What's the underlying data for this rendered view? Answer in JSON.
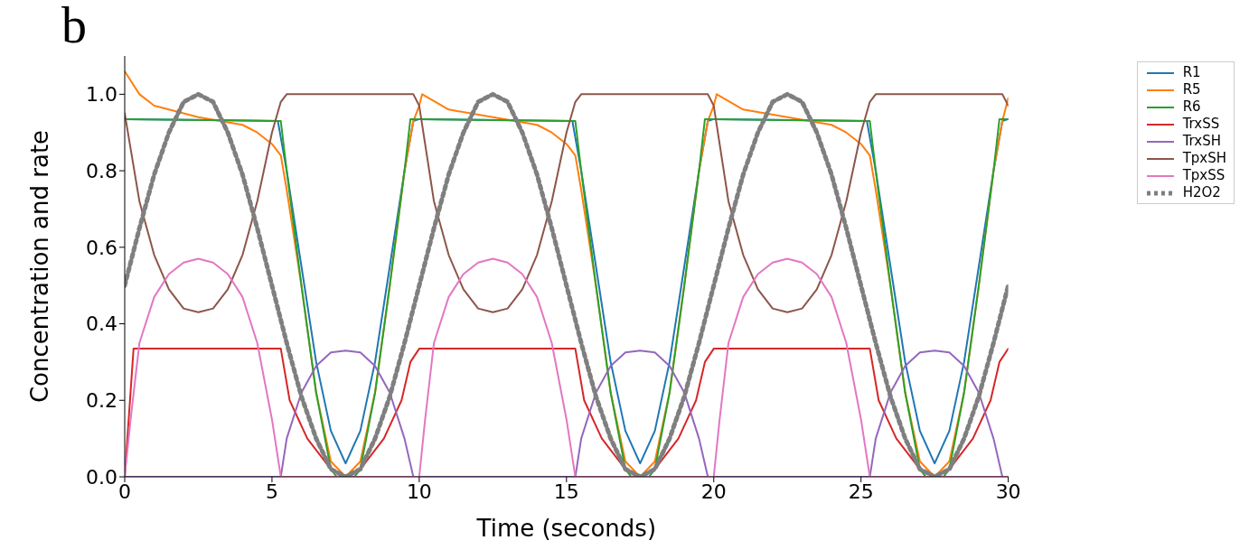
{
  "chart_data": {
    "type": "line",
    "xlabel": "Time (seconds)",
    "ylabel": "Concentration and rate",
    "annotations": [
      "b"
    ],
    "xlim": [
      0,
      30
    ],
    "xticks": [
      0,
      5,
      10,
      15,
      20,
      25,
      30
    ],
    "ylim": [
      0,
      1.1
    ],
    "yticks": [
      {
        "value": 0,
        "label": "0.0"
      },
      0.2,
      0.4,
      0.6,
      0.8,
      {
        "value": 1,
        "label": "1.0"
      }
    ],
    "legend": "top right",
    "series": [
      {
        "name": "R1",
        "color": "#1f77b4",
        "x": [
          0,
          5.2,
          5.5,
          6,
          6.5,
          7,
          7.5,
          8,
          8.5,
          9,
          9.5,
          9.8,
          10,
          15.2,
          15.5,
          16,
          16.5,
          17,
          17.5,
          18,
          18.5,
          19,
          19.5,
          19.8,
          20,
          25.2,
          25.5,
          26,
          26.5,
          27,
          27.5,
          28,
          28.5,
          29,
          29.5,
          29.8,
          30
        ],
        "values": [
          0.935,
          0.93,
          0.8,
          0.55,
          0.3,
          0.12,
          0.035,
          0.12,
          0.3,
          0.55,
          0.8,
          0.93,
          0.935,
          0.93,
          0.8,
          0.55,
          0.3,
          0.12,
          0.035,
          0.12,
          0.3,
          0.55,
          0.8,
          0.93,
          0.935,
          0.93,
          0.8,
          0.55,
          0.3,
          0.12,
          0.035,
          0.12,
          0.3,
          0.55,
          0.8,
          0.93,
          0.935
        ]
      },
      {
        "name": "R5",
        "color": "#ff7f0e",
        "x": [
          0,
          0.5,
          1,
          2.5,
          4,
          4.5,
          5,
          5.3,
          5.5,
          6,
          6.5,
          7,
          7.5,
          8,
          8.5,
          9,
          9.5,
          9.8,
          10,
          10.1,
          11,
          12.5,
          14,
          14.5,
          15,
          15.3,
          15.5,
          16,
          16.5,
          17,
          17.5,
          18,
          18.5,
          19,
          19.5,
          19.8,
          20,
          20.1,
          21,
          22.5,
          24,
          24.5,
          25,
          25.3,
          25.5,
          26,
          26.5,
          27,
          27.5,
          28,
          28.5,
          29,
          29.5,
          29.8,
          30
        ],
        "values": [
          1.06,
          1.0,
          0.97,
          0.94,
          0.92,
          0.9,
          0.87,
          0.84,
          0.75,
          0.5,
          0.22,
          0.04,
          0,
          0.04,
          0.22,
          0.5,
          0.8,
          0.93,
          0.97,
          1.0,
          0.96,
          0.94,
          0.92,
          0.9,
          0.87,
          0.84,
          0.75,
          0.5,
          0.22,
          0.04,
          0,
          0.04,
          0.22,
          0.5,
          0.8,
          0.93,
          0.97,
          1.0,
          0.96,
          0.94,
          0.92,
          0.9,
          0.87,
          0.84,
          0.75,
          0.5,
          0.22,
          0.04,
          0,
          0.04,
          0.22,
          0.5,
          0.8,
          0.93,
          0.99
        ]
      },
      {
        "name": "R6",
        "color": "#2ca02c",
        "x": [
          0,
          5.3,
          5.5,
          6,
          6.5,
          7,
          7.2,
          7.8,
          8,
          8.5,
          9,
          9.5,
          9.7,
          10,
          15.3,
          15.5,
          16,
          16.5,
          17,
          17.2,
          17.8,
          18,
          18.5,
          19,
          19.5,
          19.7,
          20,
          25.3,
          25.5,
          26,
          26.5,
          27,
          27.2,
          27.8,
          28,
          28.5,
          29,
          29.5,
          29.7,
          30
        ],
        "values": [
          0.935,
          0.93,
          0.8,
          0.5,
          0.22,
          0.02,
          0,
          0,
          0.02,
          0.22,
          0.5,
          0.8,
          0.935,
          0.935,
          0.93,
          0.8,
          0.5,
          0.22,
          0.02,
          0,
          0,
          0.02,
          0.22,
          0.5,
          0.8,
          0.935,
          0.935,
          0.93,
          0.8,
          0.5,
          0.22,
          0.02,
          0,
          0,
          0.02,
          0.22,
          0.5,
          0.8,
          0.935,
          0.935
        ]
      },
      {
        "name": "TrxSS",
        "color": "#d62728",
        "x": [
          0,
          0.3,
          5.3,
          5.6,
          6.2,
          7,
          7.5,
          8,
          8.8,
          9.4,
          9.7,
          10,
          15.3,
          15.6,
          16.2,
          17,
          17.5,
          18,
          18.8,
          19.4,
          19.7,
          20,
          25.3,
          25.6,
          26.2,
          27,
          27.5,
          28,
          28.8,
          29.4,
          29.7,
          30
        ],
        "values": [
          0,
          0.335,
          0.335,
          0.2,
          0.1,
          0.02,
          0,
          0.02,
          0.1,
          0.2,
          0.3,
          0.335,
          0.335,
          0.2,
          0.1,
          0.02,
          0,
          0.02,
          0.1,
          0.2,
          0.3,
          0.335,
          0.335,
          0.2,
          0.1,
          0.02,
          0,
          0.02,
          0.1,
          0.2,
          0.3,
          0.335
        ]
      },
      {
        "name": "TrxSH",
        "color": "#9467bd",
        "x": [
          0,
          5.3,
          5.5,
          6,
          6.5,
          7,
          7.5,
          8,
          8.5,
          9,
          9.5,
          9.8,
          15.3,
          15.5,
          16,
          16.5,
          17,
          17.5,
          18,
          18.5,
          19,
          19.5,
          19.8,
          25.3,
          25.5,
          26,
          26.5,
          27,
          27.5,
          28,
          28.5,
          29,
          29.5,
          29.8,
          30
        ],
        "values": [
          0,
          0,
          0.1,
          0.22,
          0.29,
          0.325,
          0.33,
          0.325,
          0.29,
          0.22,
          0.1,
          0,
          0,
          0.1,
          0.22,
          0.29,
          0.325,
          0.33,
          0.325,
          0.29,
          0.22,
          0.1,
          0,
          0,
          0.1,
          0.22,
          0.29,
          0.325,
          0.33,
          0.325,
          0.29,
          0.22,
          0.1,
          0,
          0
        ]
      },
      {
        "name": "TpxSH",
        "color": "#8c564b",
        "x": [
          0,
          0.5,
          1,
          1.5,
          2,
          2.5,
          3,
          3.5,
          4,
          4.5,
          5,
          5.3,
          5.5,
          9.8,
          10,
          10.5,
          11,
          11.5,
          12,
          12.5,
          13,
          13.5,
          14,
          14.5,
          15,
          15.3,
          15.5,
          19.8,
          20,
          20.5,
          21,
          21.5,
          22,
          22.5,
          23,
          23.5,
          24,
          24.5,
          25,
          25.3,
          25.5,
          29.8,
          30
        ],
        "values": [
          0.95,
          0.72,
          0.58,
          0.49,
          0.44,
          0.43,
          0.44,
          0.49,
          0.58,
          0.72,
          0.9,
          0.98,
          1.0,
          1.0,
          0.97,
          0.72,
          0.58,
          0.49,
          0.44,
          0.43,
          0.44,
          0.49,
          0.58,
          0.72,
          0.9,
          0.98,
          1.0,
          1.0,
          0.97,
          0.72,
          0.58,
          0.49,
          0.44,
          0.43,
          0.44,
          0.49,
          0.58,
          0.72,
          0.9,
          0.98,
          1.0,
          1.0,
          0.97
        ]
      },
      {
        "name": "TpxSS",
        "color": "#e377c2",
        "x": [
          0,
          0.2,
          0.5,
          1,
          1.5,
          2,
          2.5,
          3,
          3.5,
          4,
          4.5,
          5,
          5.3,
          10,
          10.2,
          10.5,
          11,
          11.5,
          12,
          12.5,
          13,
          13.5,
          14,
          14.5,
          15,
          15.3,
          20,
          20.2,
          20.5,
          21,
          21.5,
          22,
          22.5,
          23,
          23.5,
          24,
          24.5,
          25,
          25.3,
          30
        ],
        "values": [
          0,
          0.15,
          0.35,
          0.47,
          0.53,
          0.56,
          0.57,
          0.56,
          0.53,
          0.47,
          0.35,
          0.15,
          0,
          0,
          0.15,
          0.35,
          0.47,
          0.53,
          0.56,
          0.57,
          0.56,
          0.53,
          0.47,
          0.35,
          0.15,
          0,
          0,
          0.15,
          0.35,
          0.47,
          0.53,
          0.56,
          0.57,
          0.56,
          0.53,
          0.47,
          0.35,
          0.15,
          0,
          0
        ]
      },
      {
        "name": "H2O2",
        "color": "#7f7f7f",
        "line_style": "dotted",
        "x": [
          0,
          0.5,
          1,
          1.5,
          2,
          2.5,
          3,
          3.5,
          4,
          4.5,
          5,
          5.5,
          6,
          6.5,
          7,
          7.5,
          8,
          8.5,
          9,
          9.5,
          10,
          10.5,
          11,
          11.5,
          12,
          12.5,
          13,
          13.5,
          14,
          14.5,
          15,
          15.5,
          16,
          16.5,
          17,
          17.5,
          18,
          18.5,
          19,
          19.5,
          20,
          20.5,
          21,
          21.5,
          22,
          22.5,
          23,
          23.5,
          24,
          24.5,
          25,
          25.5,
          26,
          26.5,
          27,
          27.5,
          28,
          28.5,
          29,
          29.5,
          30
        ],
        "values": [
          0.5,
          0.65,
          0.79,
          0.9,
          0.98,
          1.0,
          0.98,
          0.9,
          0.79,
          0.65,
          0.5,
          0.35,
          0.21,
          0.1,
          0.02,
          0,
          0.02,
          0.1,
          0.21,
          0.35,
          0.5,
          0.65,
          0.79,
          0.9,
          0.98,
          1.0,
          0.98,
          0.9,
          0.79,
          0.65,
          0.5,
          0.35,
          0.21,
          0.1,
          0.02,
          0,
          0.02,
          0.1,
          0.21,
          0.35,
          0.5,
          0.65,
          0.79,
          0.9,
          0.98,
          1.0,
          0.98,
          0.9,
          0.79,
          0.65,
          0.5,
          0.35,
          0.21,
          0.1,
          0.02,
          0,
          0.02,
          0.1,
          0.21,
          0.35,
          0.5
        ]
      }
    ]
  }
}
